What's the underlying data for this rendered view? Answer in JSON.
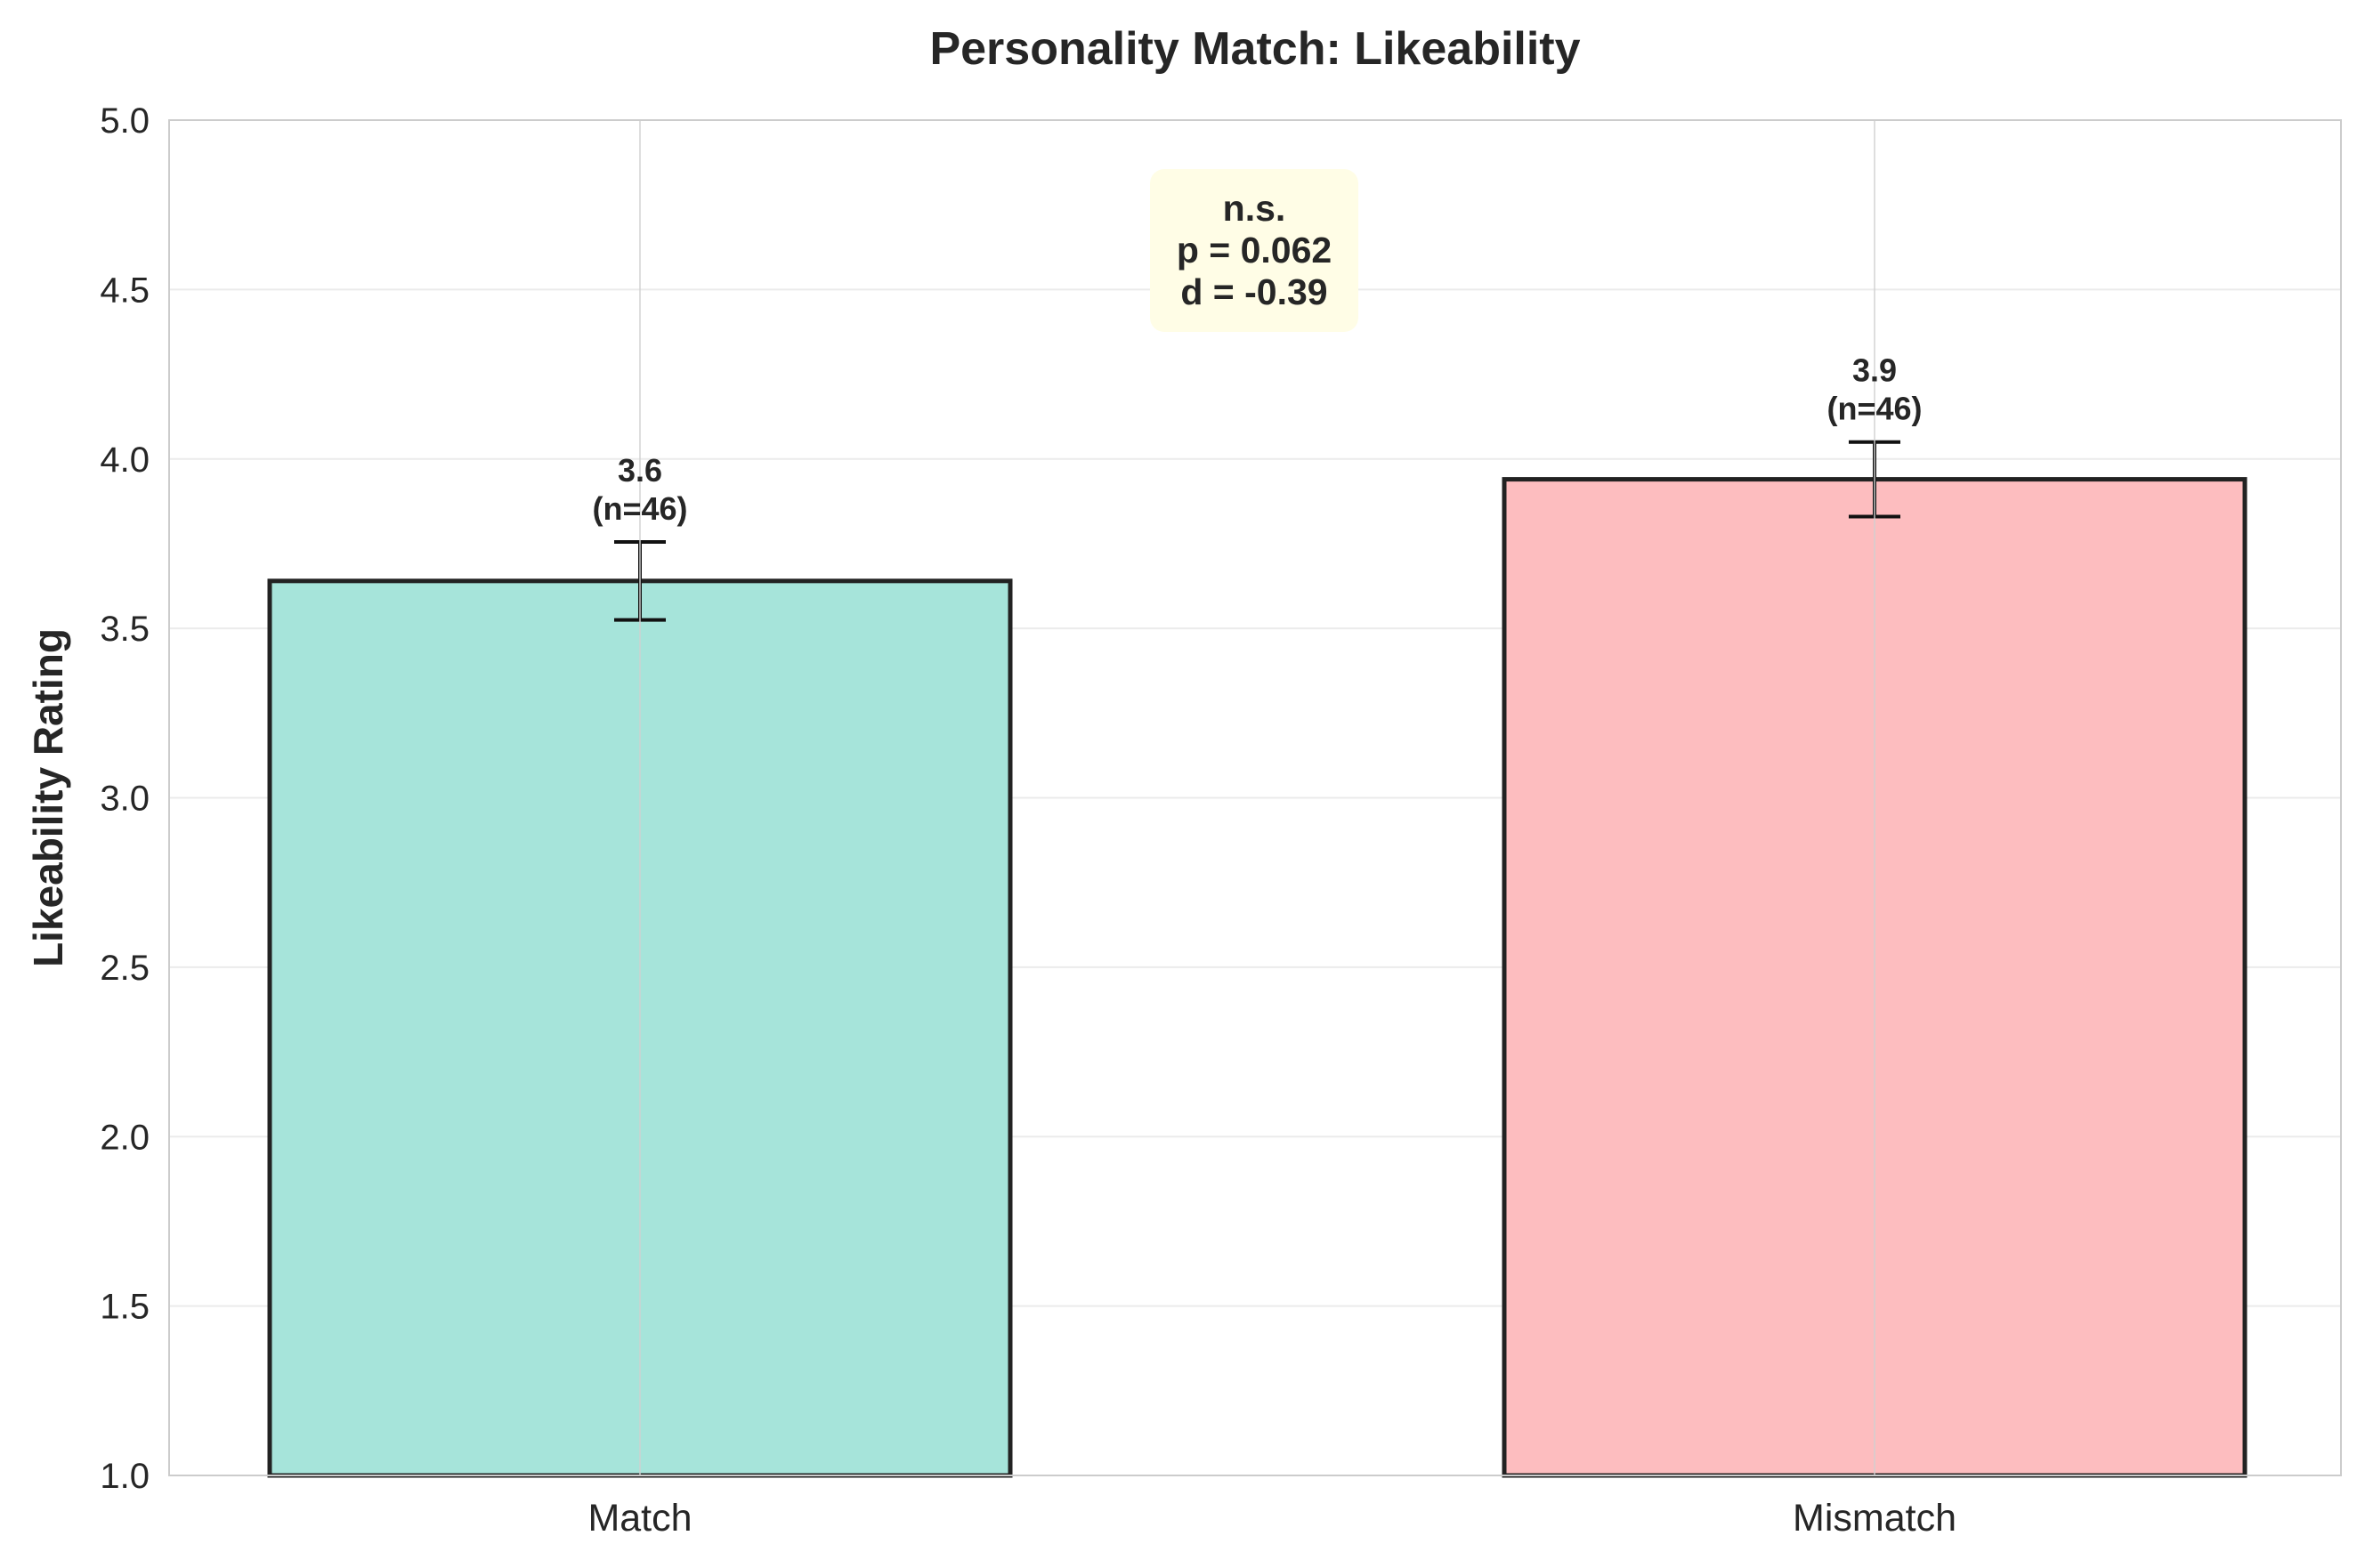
{
  "chart_data": {
    "type": "bar",
    "title": "Personality Match: Likeability",
    "xlabel": "",
    "ylabel": "Likeability Rating",
    "ylim": [
      1.0,
      5.0
    ],
    "yticks": [
      "1.0",
      "1.5",
      "2.0",
      "2.5",
      "3.0",
      "3.5",
      "4.0",
      "4.5",
      "5.0"
    ],
    "ytick_values": [
      1.0,
      1.5,
      2.0,
      2.5,
      3.0,
      3.5,
      4.0,
      4.5,
      5.0
    ],
    "categories": [
      "Match",
      "Mismatch"
    ],
    "values": [
      3.64,
      3.94
    ],
    "errors": [
      0.115,
      0.11
    ],
    "bar_labels": [
      {
        "mean": "3.6",
        "n": "(n=46)"
      },
      {
        "mean": "3.9",
        "n": "(n=46)"
      }
    ],
    "colors": [
      "#a6e4da",
      "#fdbdbf"
    ],
    "edge_color": "#222222",
    "grid": true,
    "annotation": {
      "lines": [
        "n.s.",
        "p = 0.062",
        "d = -0.39"
      ],
      "background": "#fffde6"
    }
  }
}
